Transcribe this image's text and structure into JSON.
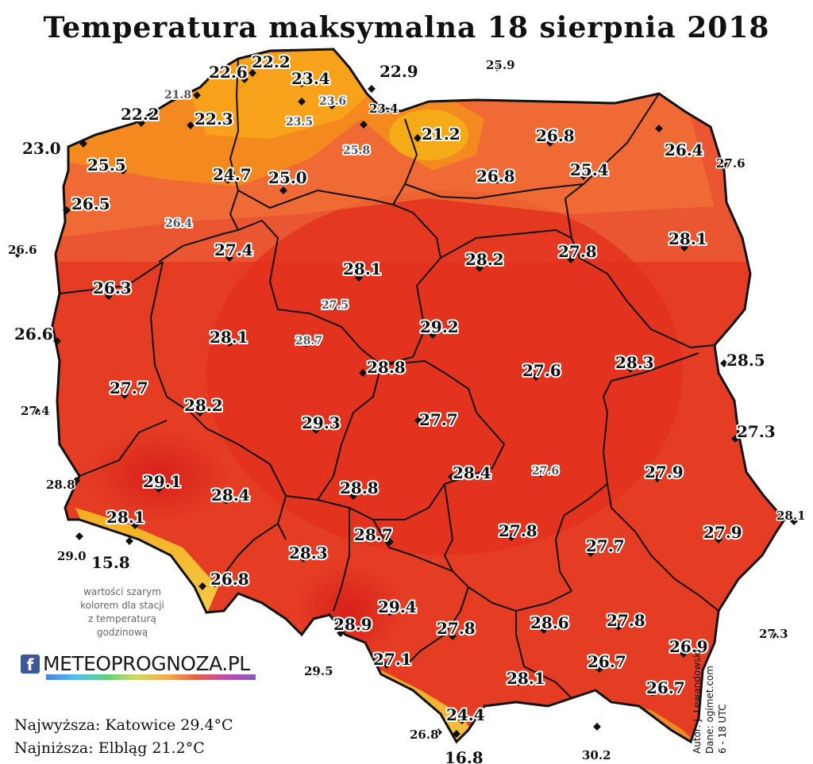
{
  "title": "Temperatura maksymalna 18 sierpnia 2018",
  "note": [
    "wartości szarym",
    "kolorem dla stacji",
    "z temperaturą",
    "godzinową"
  ],
  "logo": {
    "facebook_glyph": "f",
    "brand": "METEOPROGNOZA.PL"
  },
  "extremes": {
    "max": "Najwyższa: Katowice 29.4°C",
    "min": "Najniższa: Elbląg 21.2°C"
  },
  "author": [
    "Autor: J. Lewandowski",
    "Dane: ogimet.com",
    "6 - 18 UTC"
  ],
  "colors": {
    "hot": "#e0301f",
    "warm": "#ea5631",
    "mild": "#f27a3a",
    "cool": "#f7a21a",
    "mountain": "#f3d21e",
    "border": "#111111"
  },
  "stations": [
    {
      "v": "22.6"
    },
    {
      "v": "22.2"
    },
    {
      "v": "23.4"
    },
    {
      "v": "22.9"
    },
    {
      "v": "25.9"
    },
    {
      "v": "21.8"
    },
    {
      "v": "23.6"
    },
    {
      "v": "22.2"
    },
    {
      "v": "22.3"
    },
    {
      "v": "23.5"
    },
    {
      "v": "23.4"
    },
    {
      "v": "23.0"
    },
    {
      "v": "21.2"
    },
    {
      "v": "26.8"
    },
    {
      "v": "26.4"
    },
    {
      "v": "25.8"
    },
    {
      "v": "27.6"
    },
    {
      "v": "25.5"
    },
    {
      "v": "24.7"
    },
    {
      "v": "25.0"
    },
    {
      "v": "26.8"
    },
    {
      "v": "25.4"
    },
    {
      "v": "26.5"
    },
    {
      "v": "26.4"
    },
    {
      "v": "26.6"
    },
    {
      "v": "27.4"
    },
    {
      "v": "28.1"
    },
    {
      "v": "28.2"
    },
    {
      "v": "27.8"
    },
    {
      "v": "28.1"
    },
    {
      "v": "26.3"
    },
    {
      "v": "27.5"
    },
    {
      "v": "26.6"
    },
    {
      "v": "28.1"
    },
    {
      "v": "28.7"
    },
    {
      "v": "29.2"
    },
    {
      "v": "28.8"
    },
    {
      "v": "27.6"
    },
    {
      "v": "28.3"
    },
    {
      "v": "28.5"
    },
    {
      "v": "27.7"
    },
    {
      "v": "27.4"
    },
    {
      "v": "28.2"
    },
    {
      "v": "29.3"
    },
    {
      "v": "27.7"
    },
    {
      "v": "27.3"
    },
    {
      "v": "28.8"
    },
    {
      "v": "29.1"
    },
    {
      "v": "28.8"
    },
    {
      "v": "28.4"
    },
    {
      "v": "28.4"
    },
    {
      "v": "27.6"
    },
    {
      "v": "27.9"
    },
    {
      "v": "28.1"
    },
    {
      "v": "28.7"
    },
    {
      "v": "27.8"
    },
    {
      "v": "28.1"
    },
    {
      "v": "27.9"
    },
    {
      "v": "29.0"
    },
    {
      "v": "15.8"
    },
    {
      "v": "28.3"
    },
    {
      "v": "27.7"
    },
    {
      "v": "26.8"
    },
    {
      "v": "29.4"
    },
    {
      "v": "28.9"
    },
    {
      "v": "27.8"
    },
    {
      "v": "28.6"
    },
    {
      "v": "27.8"
    },
    {
      "v": "27.3"
    },
    {
      "v": "26.9"
    },
    {
      "v": "29.5"
    },
    {
      "v": "27.1"
    },
    {
      "v": "26.7"
    },
    {
      "v": "28.1"
    },
    {
      "v": "26.7"
    },
    {
      "v": "24.4"
    },
    {
      "v": "26.8"
    },
    {
      "v": "30.2"
    },
    {
      "v": "16.8"
    }
  ]
}
